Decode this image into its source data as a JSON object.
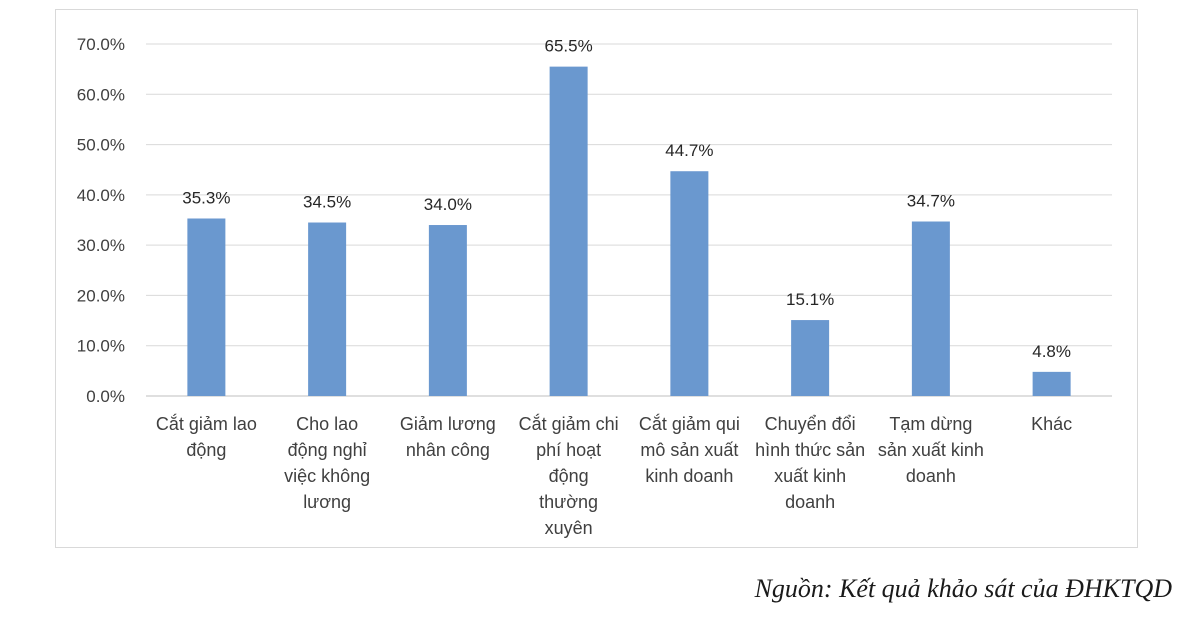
{
  "chart_data": {
    "type": "bar",
    "title": "",
    "xlabel": "",
    "ylabel": "",
    "categories": [
      [
        "Cắt giảm lao",
        "động"
      ],
      [
        "Cho lao",
        "động nghỉ",
        "việc không",
        "lương"
      ],
      [
        "Giảm lương",
        "nhân công"
      ],
      [
        "Cắt giảm chi",
        "phí hoạt",
        "động",
        "thường",
        "xuyên"
      ],
      [
        "Cắt giảm qui",
        "mô sản xuất",
        "kinh doanh"
      ],
      [
        "Chuyển đổi",
        "hình thức sản",
        "xuất kinh",
        "doanh"
      ],
      [
        "Tạm dừng",
        "sản xuất kinh",
        "doanh"
      ],
      [
        "Khác"
      ]
    ],
    "values": [
      35.3,
      34.5,
      34.0,
      65.5,
      44.7,
      15.1,
      34.7,
      4.8
    ],
    "data_labels": [
      "35.3%",
      "34.5%",
      "34.0%",
      "65.5%",
      "44.7%",
      "15.1%",
      "34.7%",
      "4.8%"
    ],
    "ylim": [
      0,
      70
    ],
    "yticks": [
      0,
      10,
      20,
      30,
      40,
      50,
      60,
      70
    ],
    "ytick_labels": [
      "0.0%",
      "10.0%",
      "20.0%",
      "30.0%",
      "40.0%",
      "50.0%",
      "60.0%",
      "70.0%"
    ],
    "grid": true,
    "legend": "none",
    "bar_color": "#6a98cf",
    "grid_color": "#d9d9d9"
  },
  "source": {
    "text": "Nguồn: Kết quả khảo sát của ĐHKTQD"
  }
}
